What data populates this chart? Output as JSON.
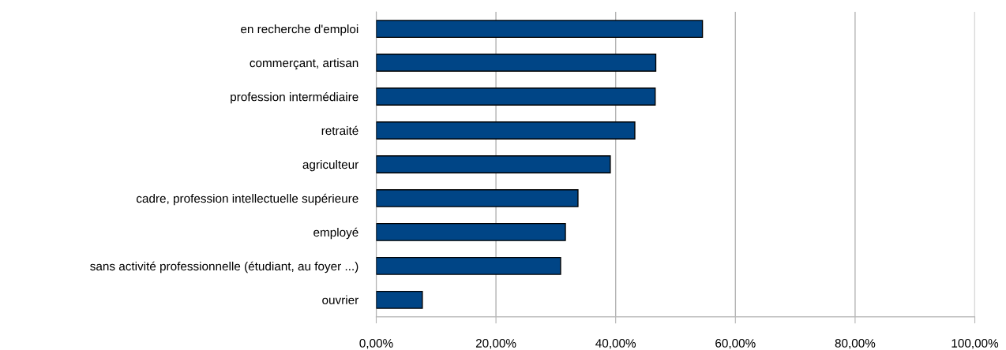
{
  "chart_data": {
    "type": "bar",
    "orientation": "horizontal",
    "categories": [
      "en recherche d'emploi",
      "commerçant, artisan",
      "profession intermédiaire",
      "retraité",
      "agriculteur",
      "cadre, profession intellectuelle supérieure",
      "employé",
      "sans activité professionnelle (étudiant, au foyer ...)",
      "ouvrier"
    ],
    "values": [
      54.5,
      46.7,
      46.6,
      43.2,
      39.1,
      33.7,
      31.6,
      30.8,
      7.7
    ],
    "color": "#004586",
    "xlim": [
      0,
      100
    ],
    "xticks": [
      {
        "value": 0,
        "label": "0,00%"
      },
      {
        "value": 20,
        "label": "20,00%"
      },
      {
        "value": 40,
        "label": "40,00%"
      },
      {
        "value": 60,
        "label": "60,00%"
      },
      {
        "value": 80,
        "label": "80,00%"
      },
      {
        "value": 100,
        "label": "100,00%"
      }
    ],
    "grid": "x",
    "legend": false
  }
}
